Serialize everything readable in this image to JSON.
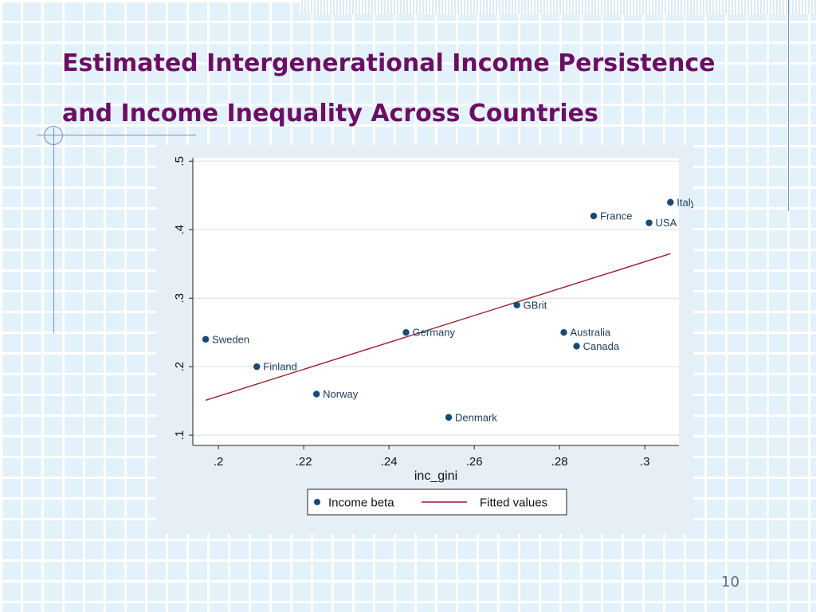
{
  "slide": {
    "title_line1": "Estimated Intergenerational Income Persistence",
    "title_line2": "and Income Inequality Across Countries",
    "page_number": "10"
  },
  "colors": {
    "title": "#6b0f64",
    "marker": "#1a4a73",
    "fit_line": "#9b1c2e",
    "plot_bg": "#ffffff",
    "panel_bg": "#e6eff5"
  },
  "chart_data": {
    "type": "scatter",
    "xlabel": "inc_gini",
    "ylabel": "",
    "xlim": [
      0.194,
      0.308
    ],
    "ylim": [
      0.085,
      0.505
    ],
    "x_ticks": [
      {
        "value": 0.2,
        "label": ".2"
      },
      {
        "value": 0.22,
        "label": ".22"
      },
      {
        "value": 0.24,
        "label": ".24"
      },
      {
        "value": 0.26,
        "label": ".26"
      },
      {
        "value": 0.28,
        "label": ".28"
      },
      {
        "value": 0.3,
        "label": ".3"
      }
    ],
    "y_ticks": [
      {
        "value": 0.1,
        "label": ".1"
      },
      {
        "value": 0.2,
        "label": ".2"
      },
      {
        "value": 0.3,
        "label": ".3"
      },
      {
        "value": 0.4,
        "label": ".4"
      },
      {
        "value": 0.5,
        "label": ".5"
      }
    ],
    "grid": "horizontal",
    "legend_position": "bottom",
    "legend": [
      "Income beta",
      "Fitted values"
    ],
    "series": [
      {
        "name": "Income beta",
        "kind": "scatter",
        "points": [
          {
            "label": "Sweden",
            "x": 0.197,
            "y": 0.24
          },
          {
            "label": "Finland",
            "x": 0.209,
            "y": 0.2
          },
          {
            "label": "Norway",
            "x": 0.223,
            "y": 0.16
          },
          {
            "label": "Germany",
            "x": 0.244,
            "y": 0.25
          },
          {
            "label": "Denmark",
            "x": 0.254,
            "y": 0.126
          },
          {
            "label": "GBrit",
            "x": 0.27,
            "y": 0.29
          },
          {
            "label": "Australia",
            "x": 0.281,
            "y": 0.25
          },
          {
            "label": "Canada",
            "x": 0.284,
            "y": 0.23
          },
          {
            "label": "France",
            "x": 0.288,
            "y": 0.42
          },
          {
            "label": "USA",
            "x": 0.301,
            "y": 0.41
          },
          {
            "label": "Italy",
            "x": 0.306,
            "y": 0.44
          }
        ]
      },
      {
        "name": "Fitted values",
        "kind": "line",
        "x": [
          0.197,
          0.306
        ],
        "y": [
          0.151,
          0.365
        ]
      }
    ]
  }
}
